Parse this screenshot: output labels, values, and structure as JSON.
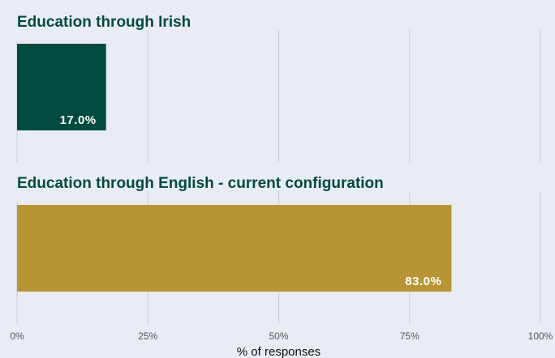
{
  "chart_data": {
    "type": "bar",
    "orientation": "horizontal",
    "facets": [
      {
        "title": "Education through Irish",
        "value": 17.0,
        "label": "17.0%",
        "color": "#004b3e"
      },
      {
        "title": "Education through English - current configuration",
        "value": 83.0,
        "label": "83.0%",
        "color": "#b89534"
      }
    ],
    "xlim": [
      0,
      100
    ],
    "xticks": [
      0,
      25,
      50,
      75,
      100
    ],
    "xtick_labels": [
      "0%",
      "25%",
      "50%",
      "75%",
      "100%"
    ],
    "xlabel": "% of responses",
    "grid": true,
    "legend": "none"
  }
}
